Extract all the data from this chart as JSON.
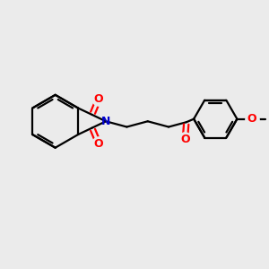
{
  "bg_color": "#ebebeb",
  "bond_color": "#000000",
  "nitrogen_color": "#0000cd",
  "oxygen_color": "#ff0000",
  "bond_width": 1.6,
  "figsize": [
    3.0,
    3.0
  ],
  "dpi": 100,
  "xlim": [
    0,
    10
  ],
  "ylim": [
    0,
    10
  ]
}
